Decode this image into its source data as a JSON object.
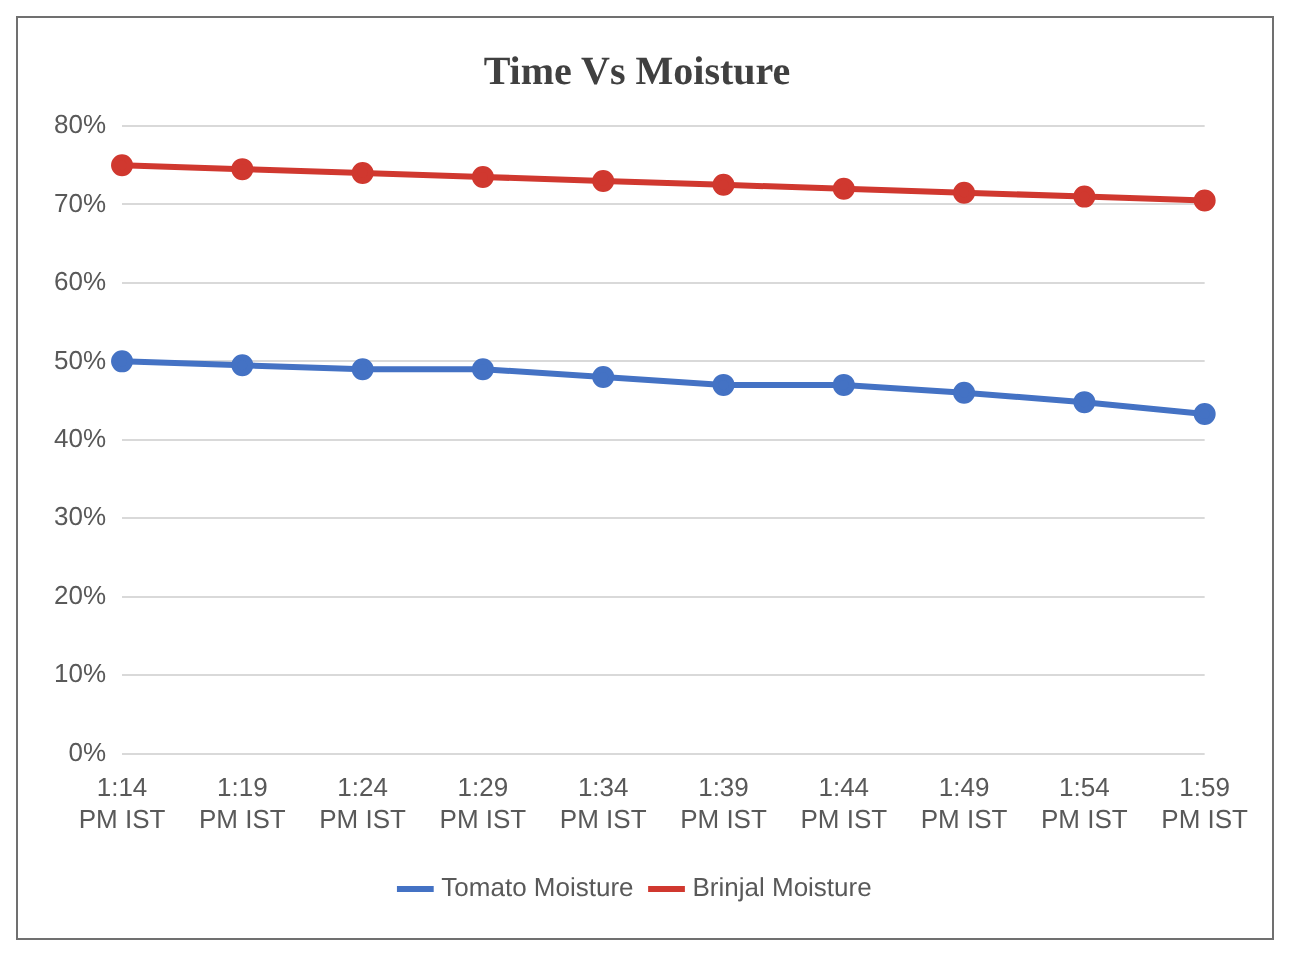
{
  "chart_data": {
    "type": "line",
    "title": "Time Vs Moisture",
    "categories": [
      "1:14 PM IST",
      "1:19 PM IST",
      "1:24 PM IST",
      "1:29 PM IST",
      "1:34 PM IST",
      "1:39 PM IST",
      "1:44 PM IST",
      "1:49 PM IST",
      "1:54 PM IST",
      "1:59 PM IST"
    ],
    "series": [
      {
        "name": "Tomato Moisture",
        "color": "#4472c4",
        "values": [
          50,
          49.5,
          49,
          49,
          48,
          47,
          47,
          46,
          44.8,
          43.3
        ]
      },
      {
        "name": "Brinjal Moisture",
        "color": "#d0382f",
        "values": [
          75,
          74.5,
          74,
          73.5,
          73,
          72.5,
          72,
          71.5,
          71,
          70.5
        ]
      }
    ],
    "ylim": [
      0,
      80
    ],
    "yticks": [
      {
        "value": 0,
        "label": "0%"
      },
      {
        "value": 10,
        "label": "10%"
      },
      {
        "value": 20,
        "label": "20%"
      },
      {
        "value": 30,
        "label": "30%"
      },
      {
        "value": 40,
        "label": "40%"
      },
      {
        "value": 50,
        "label": "50%"
      },
      {
        "value": 60,
        "label": "60%"
      },
      {
        "value": 70,
        "label": "70%"
      },
      {
        "value": 80,
        "label": "80%"
      }
    ],
    "grid": "y",
    "legend": "bottom",
    "marker": "circle",
    "line_style": "solid"
  }
}
